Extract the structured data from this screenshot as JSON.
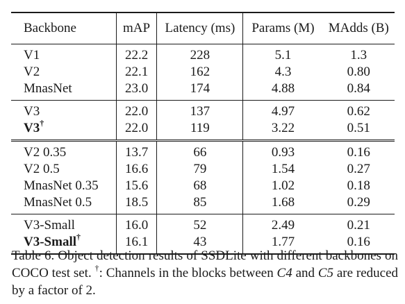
{
  "table": {
    "headers": {
      "backbone": "Backbone",
      "map": "mAP",
      "latency": "Latency (ms)",
      "params": "Params (M)",
      "madds": "MAdds (B)"
    },
    "groups": [
      {
        "rows": [
          {
            "backbone": "V1",
            "map": "22.2",
            "latency": "228",
            "params": "5.1",
            "madds": "1.3"
          },
          {
            "backbone": "V2",
            "map": "22.1",
            "latency": "162",
            "params": "4.3",
            "madds": "0.80"
          },
          {
            "backbone": "MnasNet",
            "map": "23.0",
            "latency": "174",
            "params": "4.88",
            "madds": "0.84"
          }
        ]
      },
      {
        "rows": [
          {
            "backbone": "V3",
            "map": "22.0",
            "latency": "137",
            "params": "4.97",
            "madds": "0.62"
          },
          {
            "backbone": "V3",
            "backbone_mark": "†",
            "bold": true,
            "map": "22.0",
            "latency": "119",
            "params": "3.22",
            "madds": "0.51"
          }
        ]
      },
      {
        "rows": [
          {
            "backbone": "V2 0.35",
            "map": "13.7",
            "latency": "66",
            "params": "0.93",
            "madds": "0.16"
          },
          {
            "backbone": "V2 0.5",
            "map": "16.6",
            "latency": "79",
            "params": "1.54",
            "madds": "0.27"
          },
          {
            "backbone": "MnasNet 0.35",
            "map": "15.6",
            "latency": "68",
            "params": "1.02",
            "madds": "0.18"
          },
          {
            "backbone": "MnasNet 0.5",
            "map": "18.5",
            "latency": "85",
            "params": "1.68",
            "madds": "0.29"
          }
        ]
      },
      {
        "rows": [
          {
            "backbone": "V3-Small",
            "map": "16.0",
            "latency": "52",
            "params": "2.49",
            "madds": "0.21"
          },
          {
            "backbone": "V3-Small",
            "backbone_mark": "†",
            "bold": true,
            "map": "16.1",
            "latency": "43",
            "params": "1.77",
            "madds": "0.16"
          }
        ]
      }
    ]
  },
  "caption": {
    "label": "Table 6.",
    "text_1": " Object detection results of SSDLite with different backbones on COCO test set. ",
    "dagger": "†",
    "text_2": ": Channels in the blocks between ",
    "c4": "C4",
    "text_3": " and ",
    "c5": "C5",
    "text_4": " are reduced by a factor of 2."
  }
}
